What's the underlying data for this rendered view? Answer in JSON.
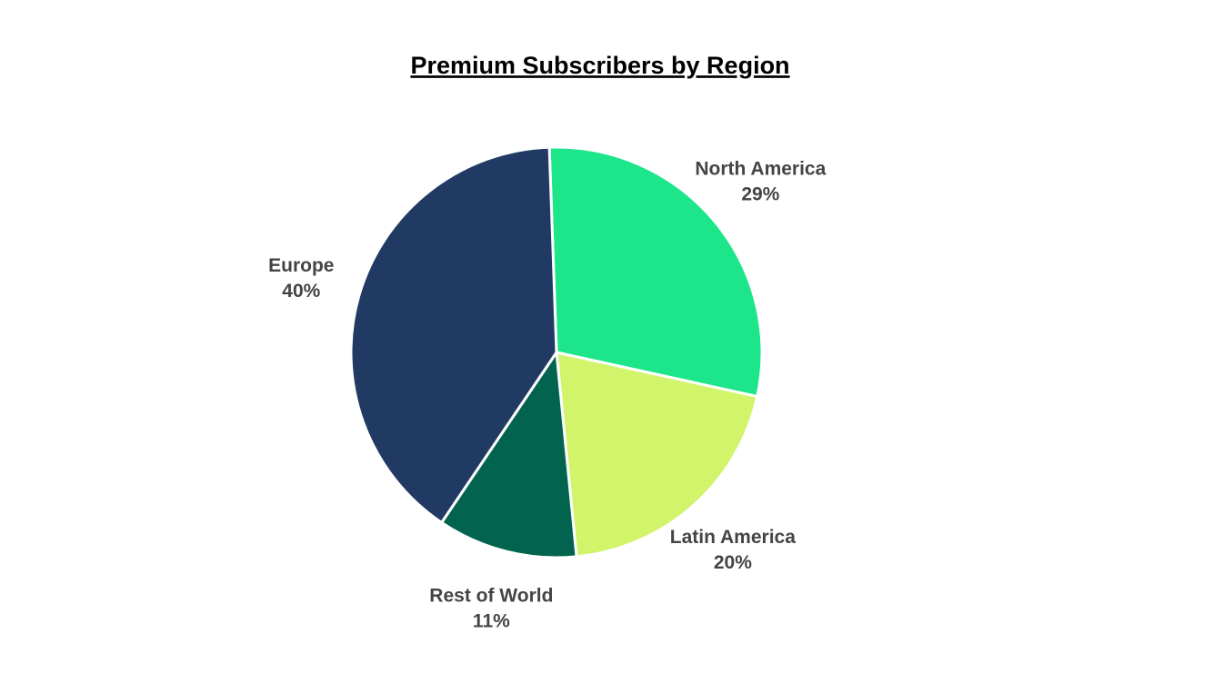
{
  "chart_data": {
    "type": "pie",
    "title": "Premium Subscribers by Region",
    "categories": [
      "North America",
      "Latin America",
      "Rest of World",
      "Europe"
    ],
    "values": [
      29,
      20,
      11,
      40
    ],
    "value_labels": [
      "29%",
      "20%",
      "11%",
      "40%"
    ],
    "colors": [
      "#1de68a",
      "#d1f46a",
      "#02644f",
      "#203a63"
    ]
  }
}
